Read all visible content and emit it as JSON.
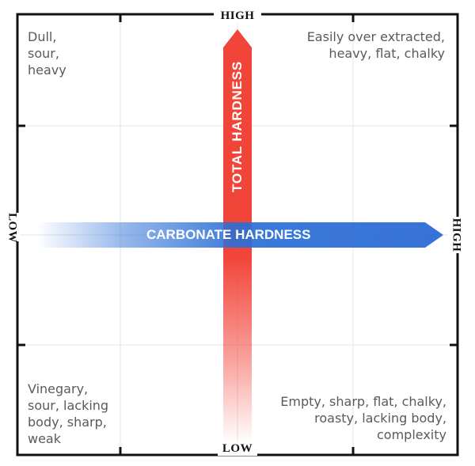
{
  "axes": {
    "horizontal": {
      "label": "CARBONATE HARDNESS",
      "low_label": "LOW",
      "high_label": "HIGH",
      "color": "#2b6fd6"
    },
    "vertical": {
      "label": "TOTAL HARDNESS",
      "low_label": "LOW",
      "high_label": "HIGH",
      "color": "#f2453a"
    }
  },
  "quadrants": {
    "top_left": "Dull,\nsour,\nheavy",
    "top_right": "Easily over extracted,\nheavy, flat, chalky",
    "bottom_left": "Vinegary,\nsour, lacking\nbody, sharp,\nweak",
    "bottom_right": "Empty, sharp, flat, chalky,\nroasty, lacking body,\ncomplexity"
  }
}
